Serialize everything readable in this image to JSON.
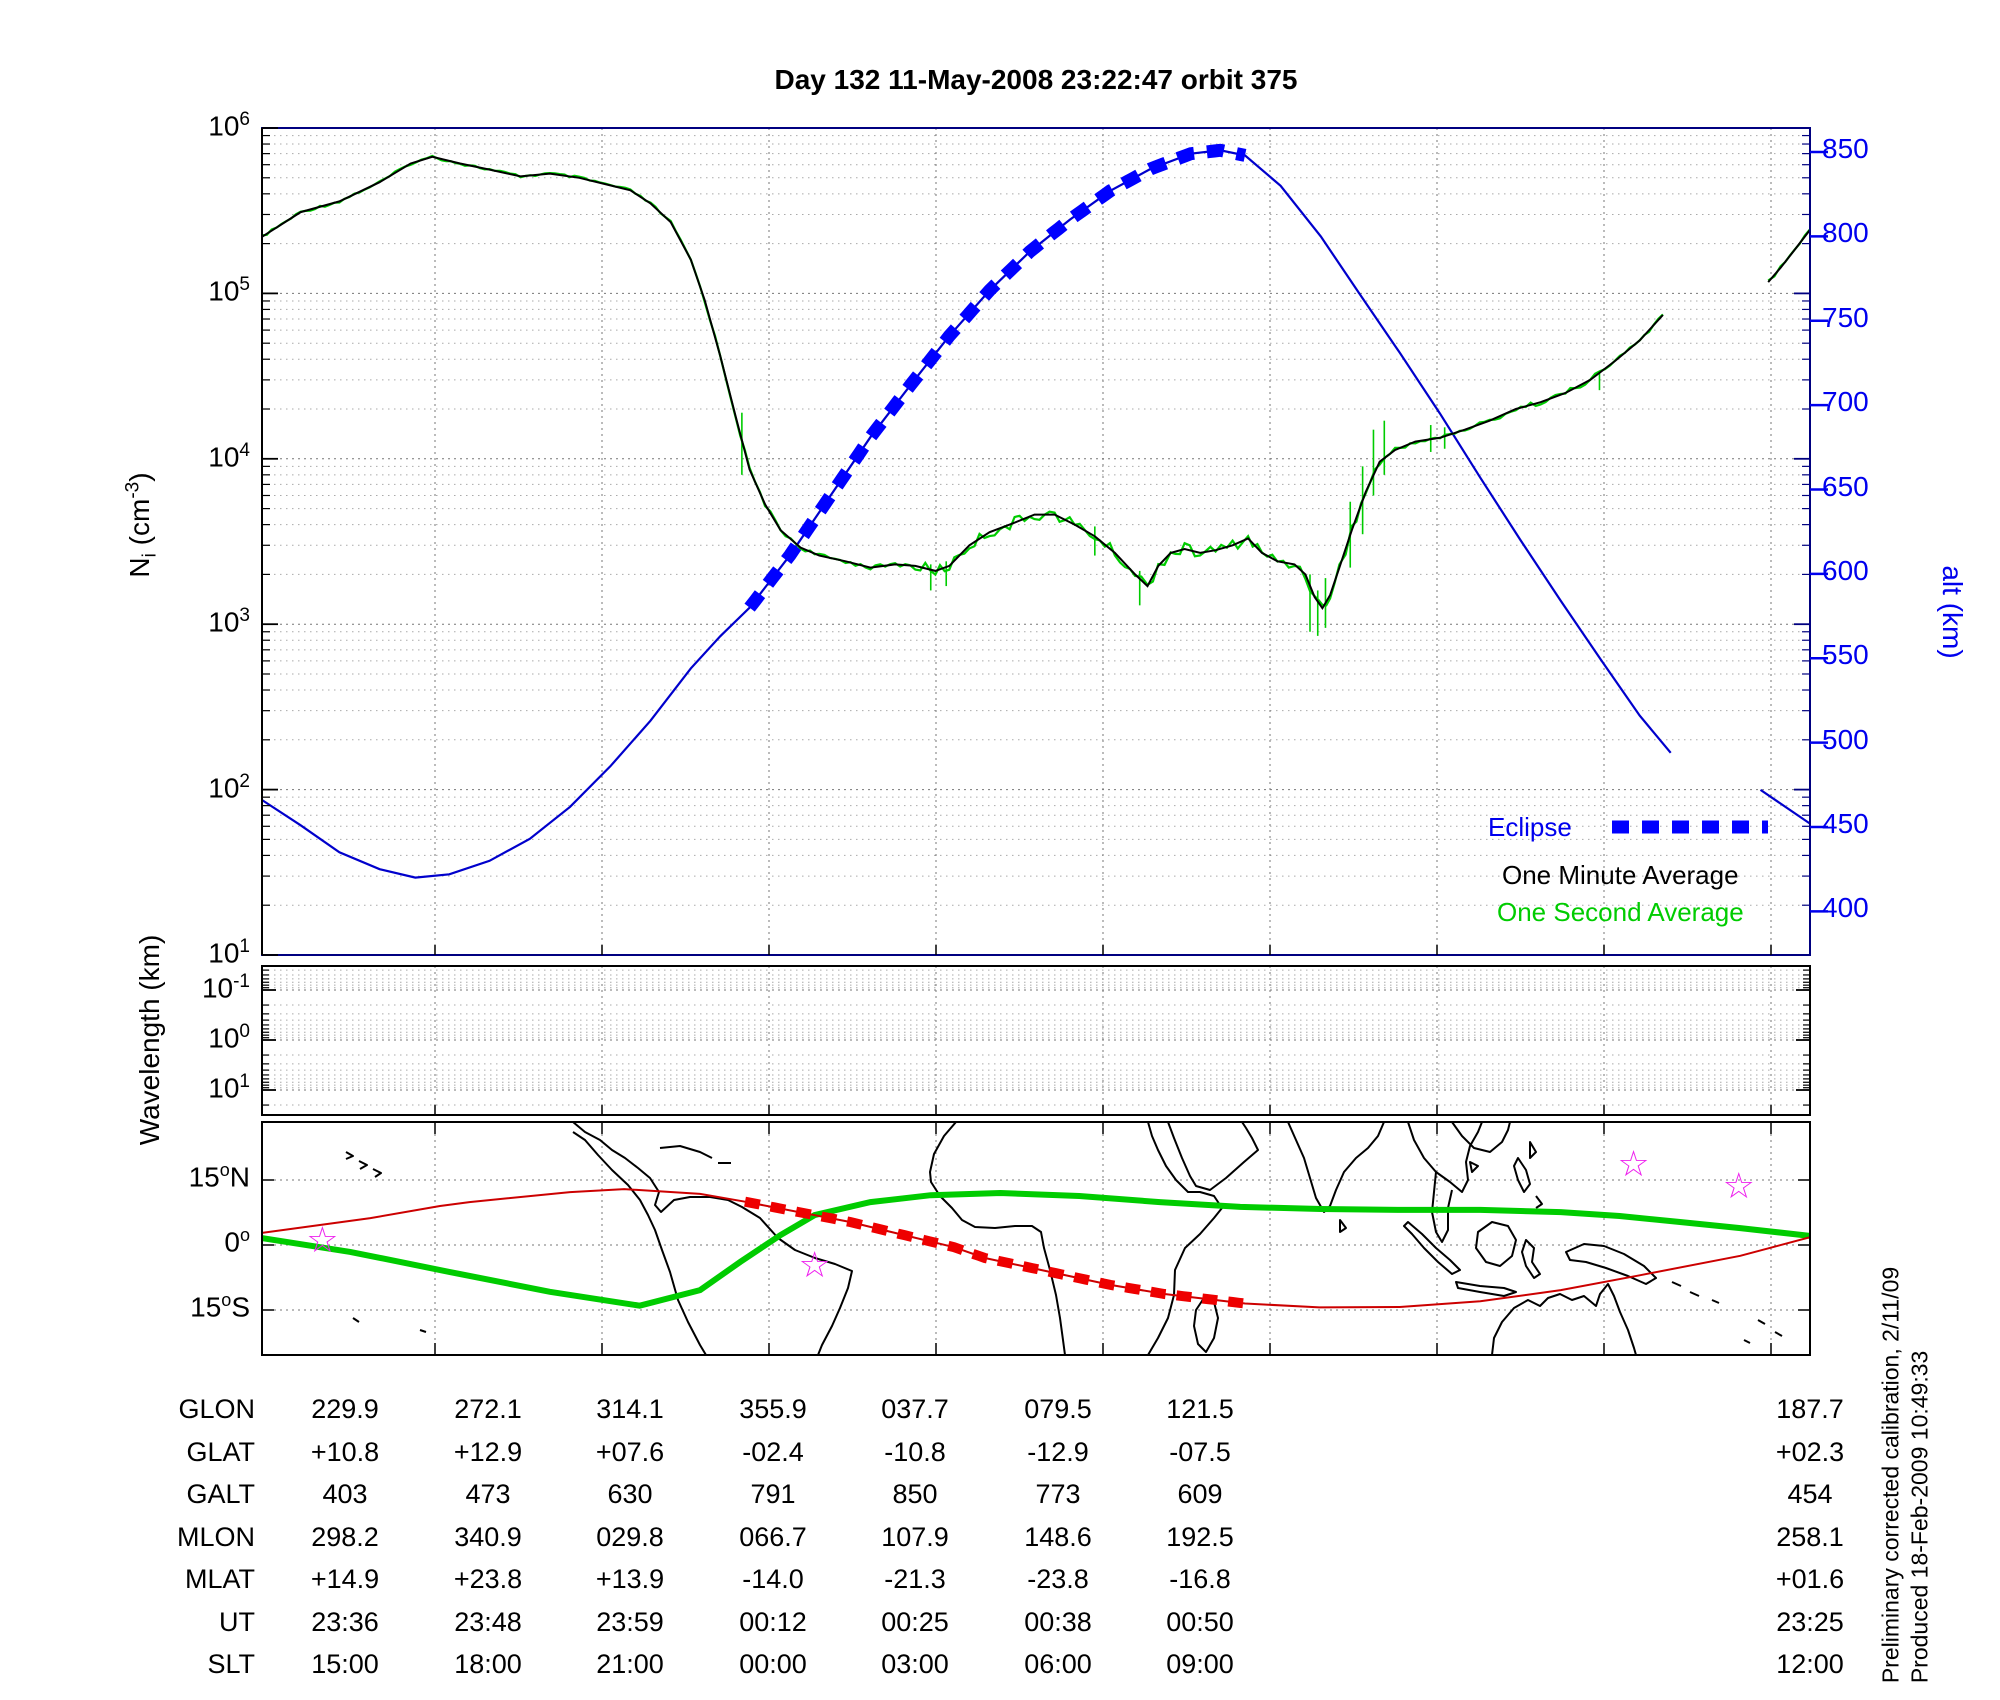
{
  "title": "Day 132  11-May-2008 23:22:47   orbit 375",
  "panel1": {
    "ylabel_left": {
      "base": "N",
      "sub": "i",
      "mid": " (cm",
      "sup": "-3",
      "end": ")"
    },
    "yticks_left_exponents": [
      6,
      5,
      4,
      3,
      2,
      1
    ],
    "ylabel_right": "alt (km)",
    "yticks_right": [
      850,
      800,
      750,
      700,
      650,
      600,
      550,
      500,
      450,
      400
    ],
    "legend": {
      "eclipse": "Eclipse",
      "one_minute": "One Minute Average",
      "one_second": "One Second Average"
    }
  },
  "panel2": {
    "ylabel": "Wavelength (km)",
    "ytick_exponents": [
      -1,
      0,
      1
    ]
  },
  "map": {
    "lat_labels": [
      {
        "num": "15",
        "deg": "o",
        "suffix": "N"
      },
      {
        "num": "0",
        "deg": "o",
        "suffix": ""
      },
      {
        "num": "15",
        "deg": "o",
        "suffix": "S"
      }
    ]
  },
  "table": {
    "rows": [
      {
        "label": "GLON",
        "values": [
          "229.9",
          "272.1",
          "314.1",
          "355.9",
          "037.7",
          "079.5",
          "121.5",
          "187.7"
        ]
      },
      {
        "label": "GLAT",
        "values": [
          "+10.8",
          "+12.9",
          "+07.6",
          "-02.4",
          "-10.8",
          "-12.9",
          "-07.5",
          "+02.3"
        ]
      },
      {
        "label": "GALT",
        "values": [
          "403",
          "473",
          "630",
          "791",
          "850",
          "773",
          "609",
          "454"
        ]
      },
      {
        "label": "MLON",
        "values": [
          "298.2",
          "340.9",
          "029.8",
          "066.7",
          "107.9",
          "148.6",
          "192.5",
          "258.1"
        ]
      },
      {
        "label": "MLAT",
        "values": [
          "+14.9",
          "+23.8",
          "+13.9",
          "-14.0",
          "-21.3",
          "-23.8",
          "-16.8",
          "+01.6"
        ]
      },
      {
        "label": "UT",
        "values": [
          "23:36",
          "23:48",
          "23:59",
          "00:12",
          "00:25",
          "00:38",
          "00:50",
          "23:25"
        ]
      },
      {
        "label": "SLT",
        "values": [
          "15:00",
          "18:00",
          "21:00",
          "00:00",
          "03:00",
          "06:00",
          "09:00",
          "12:00"
        ]
      }
    ]
  },
  "footnote": {
    "line1": "Preliminary corrected calibration, 2/11/09",
    "line2": "Produced 18-Feb-2009 10:49:33"
  },
  "chart_data": {
    "type": "line",
    "title": "Day 132  11-May-2008 23:22:47   orbit 375",
    "panels": [
      {
        "name": "ion_density_and_altitude",
        "x_axis": "fraction of displayed orbit (UT 23:22:47 onward)",
        "left_axis": {
          "label": "Ni (cm-3)",
          "scale": "log",
          "range": [
            10,
            1000000
          ]
        },
        "right_axis": {
          "label": "alt (km)",
          "ticks": [
            400,
            450,
            500,
            550,
            600,
            650,
            700,
            750,
            800,
            850
          ]
        },
        "legend_position": "lower right inside",
        "grid": "dotted log minor + vertical time lines",
        "series": [
          {
            "name": "one_minute_average_Ni",
            "color": "#000000",
            "points": [
              [
                0.0,
                220000
              ],
              [
                0.025,
                310000
              ],
              [
                0.05,
                360000
              ],
              [
                0.076,
                470000
              ],
              [
                0.096,
                610000
              ],
              [
                0.11,
                670000
              ],
              [
                0.128,
                610000
              ],
              [
                0.147,
                560000
              ],
              [
                0.167,
                510000
              ],
              [
                0.186,
                530000
              ],
              [
                0.205,
                500000
              ],
              [
                0.225,
                450000
              ],
              [
                0.238,
                420000
              ],
              [
                0.251,
                350000
              ],
              [
                0.264,
                270000
              ],
              [
                0.277,
                160000
              ],
              [
                0.286,
                91000
              ],
              [
                0.296,
                42000
              ],
              [
                0.306,
                18000
              ],
              [
                0.315,
                8600
              ],
              [
                0.325,
                5300
              ],
              [
                0.335,
                3700
              ],
              [
                0.348,
                2900
              ],
              [
                0.36,
                2600
              ],
              [
                0.377,
                2400
              ],
              [
                0.393,
                2200
              ],
              [
                0.409,
                2300
              ],
              [
                0.422,
                2250
              ],
              [
                0.435,
                2100
              ],
              [
                0.444,
                2250
              ],
              [
                0.457,
                3000
              ],
              [
                0.47,
                3600
              ],
              [
                0.483,
                4000
              ],
              [
                0.499,
                4600
              ],
              [
                0.512,
                4600
              ],
              [
                0.525,
                4000
              ],
              [
                0.538,
                3400
              ],
              [
                0.551,
                2700
              ],
              [
                0.564,
                2000
              ],
              [
                0.572,
                1700
              ],
              [
                0.579,
                2250
              ],
              [
                0.587,
                2700
              ],
              [
                0.596,
                2850
              ],
              [
                0.606,
                2700
              ],
              [
                0.616,
                2800
              ],
              [
                0.627,
                3000
              ],
              [
                0.637,
                3300
              ],
              [
                0.646,
                2700
              ],
              [
                0.656,
                2400
              ],
              [
                0.667,
                2300
              ],
              [
                0.674,
                2000
              ],
              [
                0.68,
                1460
              ],
              [
                0.685,
                1250
              ],
              [
                0.69,
                1500
              ],
              [
                0.696,
                2200
              ],
              [
                0.704,
                3700
              ],
              [
                0.713,
                6300
              ],
              [
                0.722,
                9600
              ],
              [
                0.732,
                11300
              ],
              [
                0.745,
                12700
              ],
              [
                0.761,
                13400
              ],
              [
                0.777,
                15000
              ],
              [
                0.793,
                17000
              ],
              [
                0.81,
                20000
              ],
              [
                0.826,
                22000
              ],
              [
                0.842,
                25000
              ],
              [
                0.858,
                30000
              ],
              [
                0.874,
                39000
              ],
              [
                0.89,
                52000
              ],
              [
                0.905,
                74000
              ]
            ]
          },
          {
            "name": "one_minute_average_Ni_segment2",
            "color": "#000000",
            "points": [
              [
                0.973,
                117000
              ],
              [
                0.981,
                143000
              ],
              [
                0.99,
                183000
              ],
              [
                1.0,
                242000
              ]
            ]
          },
          {
            "name": "one_second_average_Ni",
            "color": "#00CC00",
            "derived": "one_minute plus scatter",
            "spikes": [
              [
                0.31,
                8000,
                19000
              ],
              [
                0.432,
                1600,
                2300
              ],
              [
                0.442,
                1700,
                2400
              ],
              [
                0.538,
                2600,
                3900
              ],
              [
                0.567,
                1300,
                2100
              ],
              [
                0.677,
                900,
                2000
              ],
              [
                0.682,
                850,
                1600
              ],
              [
                0.687,
                950,
                1900
              ],
              [
                0.703,
                2200,
                5500
              ],
              [
                0.711,
                3500,
                9000
              ],
              [
                0.718,
                6000,
                15000
              ],
              [
                0.725,
                8000,
                17000
              ],
              [
                0.755,
                11000,
                16000
              ],
              [
                0.764,
                11500,
                15500
              ],
              [
                0.864,
                26000,
                34000
              ]
            ]
          },
          {
            "name": "altitude_km",
            "color": "#0000CC",
            "points": [
              [
                0.0,
                466
              ],
              [
                0.025,
                451
              ],
              [
                0.05,
                435
              ],
              [
                0.076,
                425
              ],
              [
                0.099,
                420
              ],
              [
                0.121,
                422
              ],
              [
                0.147,
                430
              ],
              [
                0.173,
                443
              ],
              [
                0.199,
                462
              ],
              [
                0.225,
                486
              ],
              [
                0.251,
                513
              ],
              [
                0.277,
                544
              ],
              [
                0.296,
                563
              ],
              [
                0.315,
                580
              ],
              [
                0.341,
                611
              ],
              [
                0.367,
                646
              ],
              [
                0.393,
                681
              ],
              [
                0.419,
                712
              ],
              [
                0.444,
                741
              ],
              [
                0.47,
                768
              ],
              [
                0.496,
                791
              ],
              [
                0.522,
                810
              ],
              [
                0.548,
                827
              ],
              [
                0.574,
                840
              ],
              [
                0.6,
                849
              ],
              [
                0.619,
                851
              ],
              [
                0.635,
                848
              ],
              [
                0.658,
                830
              ],
              [
                0.684,
                800
              ],
              [
                0.709,
                766
              ],
              [
                0.735,
                731
              ],
              [
                0.761,
                695
              ],
              [
                0.787,
                657
              ],
              [
                0.813,
                620
              ],
              [
                0.839,
                584
              ],
              [
                0.865,
                549
              ],
              [
                0.89,
                516
              ],
              [
                0.91,
                494
              ]
            ]
          },
          {
            "name": "altitude_km_segment2",
            "color": "#0000CC",
            "points": [
              [
                0.968,
                472
              ],
              [
                1.0,
                452
              ]
            ]
          },
          {
            "name": "eclipse_overlay",
            "color": "#0000FF",
            "style": "thick square dashes on altitude curve",
            "span_fx": [
              0.315,
              0.635
            ]
          }
        ]
      },
      {
        "name": "wavelength_spectrogram",
        "ylabel": "Wavelength (km)",
        "scale": "log reversed",
        "range_km": [
          0.1,
          10
        ],
        "series": []
      },
      {
        "name": "ground_track_map",
        "lat_gridlines_deg": [
          15,
          0,
          -15
        ],
        "series": [
          {
            "name": "satellite_ground_track",
            "color": "#CC0000",
            "points_fx_lat": [
              [
                0.0,
                2.8
              ],
              [
                0.07,
                6.2
              ],
              [
                0.115,
                9.0
              ],
              [
                0.134,
                9.9
              ],
              [
                0.199,
                12.2
              ],
              [
                0.234,
                12.9
              ],
              [
                0.283,
                11.8
              ],
              [
                0.312,
                10.0
              ],
              [
                0.38,
                5.3
              ],
              [
                0.447,
                -0.5
              ],
              [
                0.467,
                -3.0
              ],
              [
                0.509,
                -6.2
              ],
              [
                0.548,
                -9.2
              ],
              [
                0.583,
                -11.3
              ],
              [
                0.635,
                -13.5
              ],
              [
                0.683,
                -14.4
              ],
              [
                0.735,
                -14.3
              ],
              [
                0.787,
                -13.0
              ],
              [
                0.839,
                -10.4
              ],
              [
                0.89,
                -7.0
              ],
              [
                0.955,
                -2.5
              ],
              [
                1.0,
                1.8
              ]
            ]
          },
          {
            "name": "ground_track_eclipse_overlay",
            "color": "#EE0000",
            "style": "thick square dashes",
            "span_fx": [
              0.312,
              0.635
            ]
          },
          {
            "name": "magnetic_equator",
            "color": "#00CC00",
            "points_fx_lat": [
              [
                0.0,
                1.6
              ],
              [
                0.057,
                -1.6
              ],
              [
                0.121,
                -6.2
              ],
              [
                0.186,
                -10.8
              ],
              [
                0.244,
                -14.0
              ],
              [
                0.283,
                -10.4
              ],
              [
                0.309,
                -3.9
              ],
              [
                0.335,
                2.3
              ],
              [
                0.357,
                6.9
              ],
              [
                0.393,
                9.9
              ],
              [
                0.432,
                11.5
              ],
              [
                0.477,
                12.0
              ],
              [
                0.528,
                11.3
              ],
              [
                0.58,
                9.9
              ],
              [
                0.632,
                8.8
              ],
              [
                0.684,
                8.3
              ],
              [
                0.736,
                8.1
              ],
              [
                0.787,
                8.1
              ],
              [
                0.839,
                7.6
              ],
              [
                0.877,
                6.7
              ],
              [
                0.916,
                5.3
              ],
              [
                0.955,
                3.9
              ],
              [
                1.0,
                2.1
              ]
            ]
          },
          {
            "name": "ground_station_stars",
            "color": "#EE22EE",
            "points_fx_lat": [
              [
                0.039,
                1.2
              ],
              [
                0.357,
                -4.6
              ],
              [
                0.886,
                18.7
              ],
              [
                0.954,
                13.6
              ]
            ]
          }
        ]
      }
    ]
  }
}
